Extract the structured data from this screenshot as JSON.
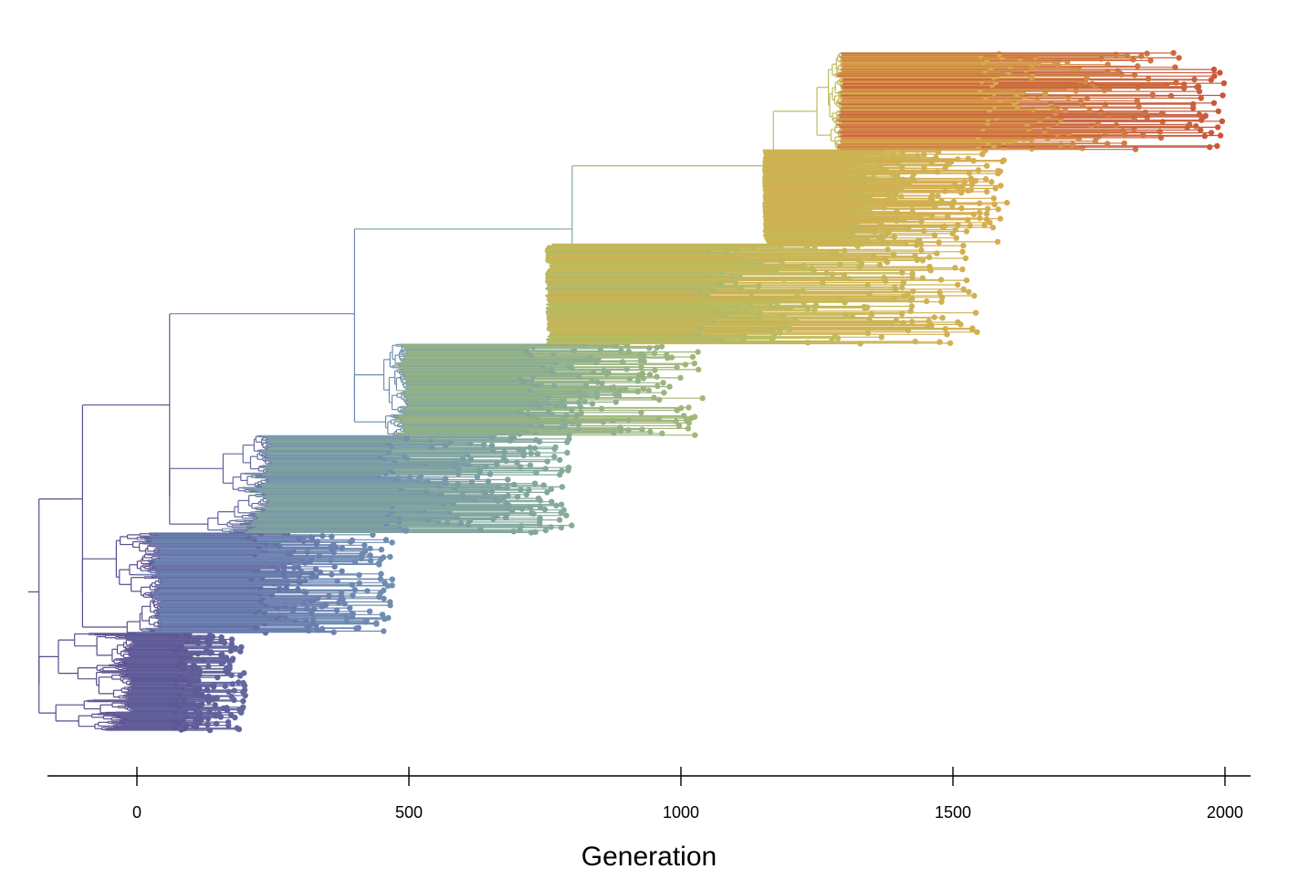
{
  "chart_data": {
    "type": "tree",
    "title": "",
    "xlabel": "Generation",
    "ylabel": "",
    "xlim": [
      -165,
      2035
    ],
    "xticks": [
      0,
      500,
      1000,
      1500,
      2000
    ],
    "xtick_labels": [
      "0",
      "500",
      "1000",
      "1500",
      "2000"
    ],
    "grid": false,
    "legend": "none",
    "color_scale": {
      "meaning": "generation",
      "domain": [
        0,
        2000
      ],
      "colors": [
        "#5b4a8c",
        "#6d87b5",
        "#86ad98",
        "#b8bf5e",
        "#d9ab4d",
        "#c8543b"
      ]
    },
    "tree": {
      "root_generation": -200,
      "tip_count": 1280,
      "clades": [
        {
          "name": "",
          "origin": -180,
          "tips_min": 0,
          "tips_max": 200
        },
        {
          "name": "",
          "origin": -100,
          "tips_min": 50,
          "tips_max": 470
        },
        {
          "name": "",
          "origin": 60,
          "tips_min": 250,
          "tips_max": 800
        },
        {
          "name": "",
          "origin": 400,
          "tips_min": 500,
          "tips_max": 1040
        },
        {
          "name": "",
          "origin": 800,
          "tips_min": 750,
          "tips_max": 1550
        },
        {
          "name": "",
          "origin": 1170,
          "tips_min": 1150,
          "tips_max": 1600
        },
        {
          "name": "",
          "origin": 1250,
          "tips_min": 1300,
          "tips_max": 2000
        }
      ]
    }
  }
}
